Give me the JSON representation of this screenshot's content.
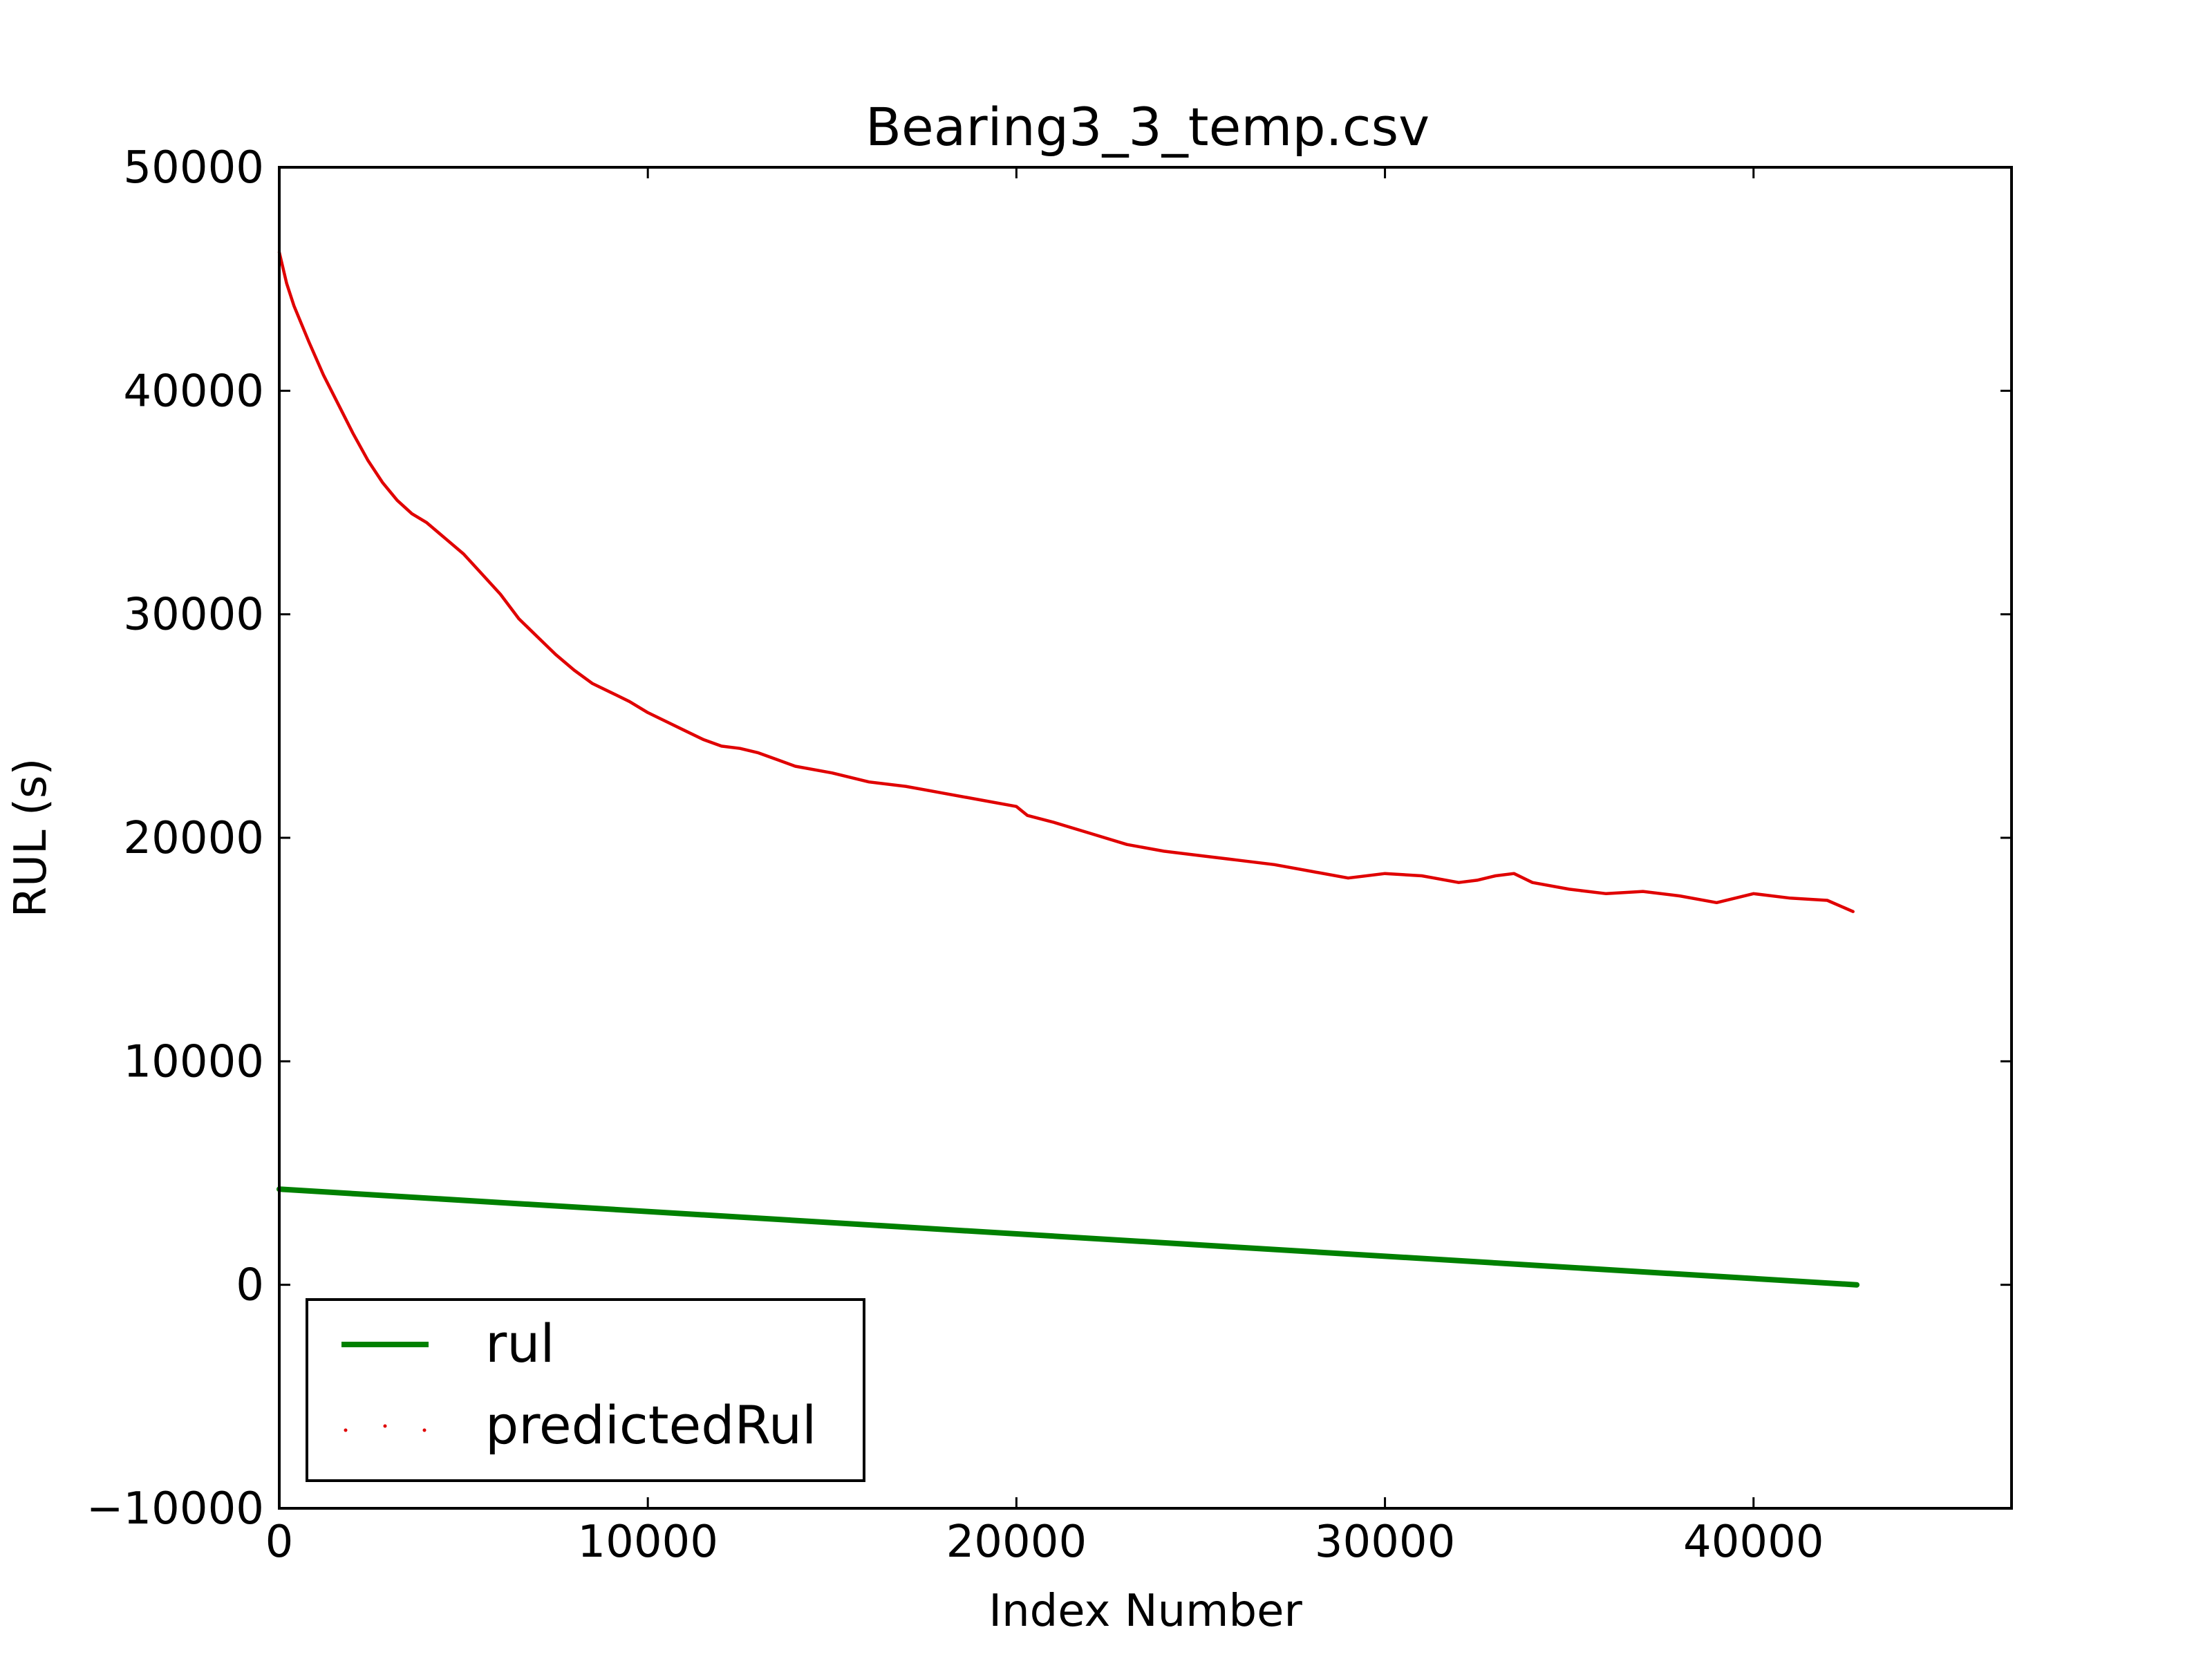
{
  "chart_data": {
    "type": "line",
    "title": "Bearing3_3_temp.csv",
    "xlabel": "Index Number",
    "ylabel": "RUL (s)",
    "xlim": [
      0,
      47000
    ],
    "ylim": [
      -10000,
      50000
    ],
    "xticks": [
      0,
      10000,
      20000,
      30000,
      40000
    ],
    "yticks": [
      -10000,
      0,
      10000,
      20000,
      30000,
      40000,
      50000
    ],
    "xtick_labels": [
      "0",
      "10000",
      "20000",
      "30000",
      "40000"
    ],
    "ytick_labels": [
      "−10000",
      "0",
      "10000",
      "20000",
      "30000",
      "40000",
      "50000"
    ],
    "grid": false,
    "legend_position": "lower-left",
    "series": [
      {
        "name": "rul",
        "color": "#008000",
        "style": "solid-thick",
        "x": [
          0,
          42800
        ],
        "y": [
          4280,
          0
        ]
      },
      {
        "name": "predictedRul",
        "color": "#e00000",
        "style": "dotted",
        "x": [
          0,
          200,
          400,
          800,
          1200,
          1600,
          2000,
          2400,
          2800,
          3200,
          3600,
          4000,
          4500,
          5000,
          5500,
          6000,
          6500,
          7000,
          7500,
          8000,
          8500,
          9000,
          9500,
          10000,
          10500,
          11000,
          11500,
          12000,
          12500,
          13000,
          13500,
          14000,
          15000,
          16000,
          17000,
          18000,
          19000,
          20000,
          20300,
          21000,
          22000,
          23000,
          24000,
          25000,
          26000,
          27000,
          28000,
          29000,
          30000,
          31000,
          32000,
          32500,
          33000,
          33500,
          34000,
          35000,
          36000,
          37000,
          38000,
          39000,
          40000,
          41000,
          42000,
          42700
        ],
        "y": [
          46200,
          44800,
          43800,
          42200,
          40700,
          39400,
          38100,
          36900,
          35900,
          35100,
          34500,
          34100,
          33400,
          32700,
          31800,
          30900,
          29800,
          29000,
          28200,
          27500,
          26900,
          26500,
          26100,
          25600,
          25200,
          24800,
          24400,
          24100,
          24000,
          23800,
          23500,
          23200,
          22900,
          22500,
          22300,
          22000,
          21700,
          21400,
          21000,
          20700,
          20200,
          19700,
          19400,
          19200,
          19000,
          18800,
          18500,
          18200,
          18400,
          18300,
          18000,
          18100,
          18300,
          18400,
          18000,
          17700,
          17500,
          17600,
          17400,
          17100,
          17500,
          17300,
          17200,
          16700
        ]
      }
    ]
  }
}
